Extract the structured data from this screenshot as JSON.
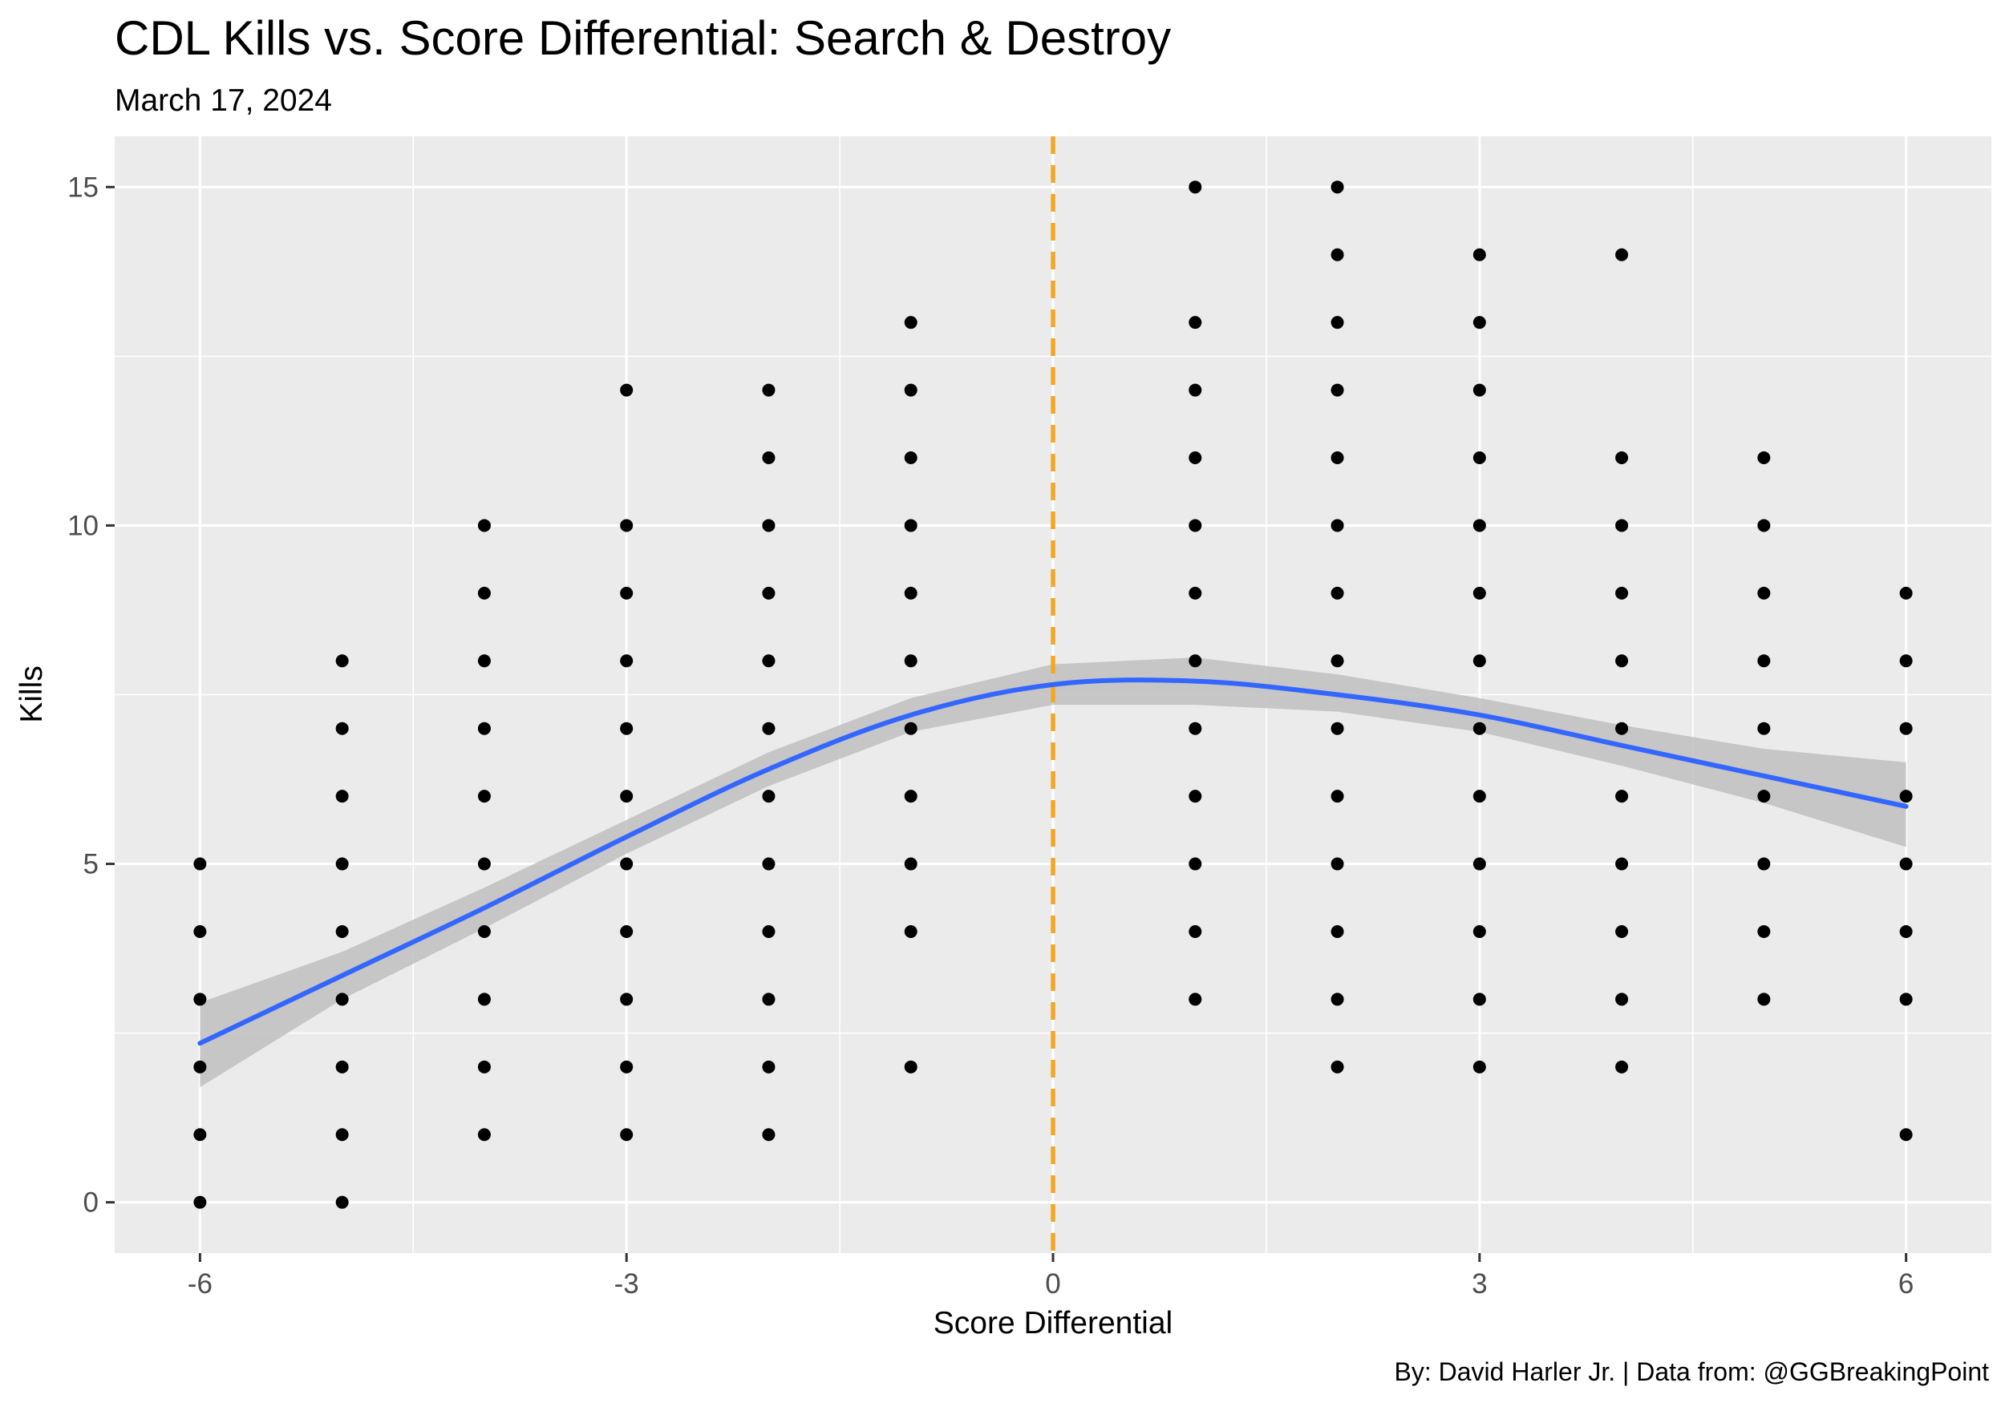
{
  "chart_data": {
    "type": "scatter",
    "title": "CDL Kills vs. Score Differential: Search & Destroy",
    "subtitle": "March 17, 2024",
    "xlabel": "Score Differential",
    "ylabel": "Kills",
    "caption": "By: David Harler Jr. | Data from: @GGBreakingPoint",
    "xlim": [
      -6.6,
      6.6
    ],
    "ylim": [
      -0.75,
      15.75
    ],
    "x_ticks": [
      -6,
      -3,
      0,
      3,
      6
    ],
    "x_tick_labels": [
      "-6",
      "-3",
      "0",
      "3",
      "6"
    ],
    "y_ticks": [
      0,
      5,
      10,
      15
    ],
    "y_tick_labels": [
      "0",
      "5",
      "10",
      "15"
    ],
    "grid": true,
    "legend": "none",
    "reference_line": {
      "x": 0,
      "style": "dashed",
      "color": "#f5a623"
    },
    "points": [
      {
        "x": -6,
        "kills": [
          0,
          1,
          2,
          3,
          4,
          5
        ]
      },
      {
        "x": -5,
        "kills": [
          0,
          1,
          2,
          3,
          4,
          5,
          6,
          7,
          8
        ]
      },
      {
        "x": -4,
        "kills": [
          1,
          2,
          3,
          4,
          5,
          6,
          7,
          8,
          9,
          10
        ]
      },
      {
        "x": -3,
        "kills": [
          1,
          2,
          3,
          4,
          5,
          6,
          7,
          8,
          9,
          10,
          12
        ]
      },
      {
        "x": -2,
        "kills": [
          1,
          2,
          3,
          4,
          5,
          6,
          7,
          8,
          9,
          10,
          11,
          12
        ]
      },
      {
        "x": -1,
        "kills": [
          2,
          4,
          5,
          6,
          7,
          8,
          9,
          10,
          11,
          12,
          13
        ]
      },
      {
        "x": 1,
        "kills": [
          3,
          4,
          5,
          6,
          7,
          8,
          9,
          10,
          11,
          12,
          13,
          15
        ]
      },
      {
        "x": 2,
        "kills": [
          2,
          3,
          4,
          5,
          6,
          7,
          8,
          9,
          10,
          11,
          12,
          13,
          14,
          15
        ]
      },
      {
        "x": 3,
        "kills": [
          2,
          3,
          4,
          5,
          6,
          7,
          8,
          9,
          10,
          11,
          12,
          13,
          14
        ]
      },
      {
        "x": 4,
        "kills": [
          2,
          3,
          4,
          5,
          6,
          7,
          8,
          9,
          10,
          11,
          14
        ]
      },
      {
        "x": 5,
        "kills": [
          3,
          4,
          5,
          6,
          7,
          8,
          9,
          10,
          11
        ]
      },
      {
        "x": 6,
        "kills": [
          1,
          3,
          4,
          5,
          6,
          7,
          8,
          9
        ]
      }
    ],
    "smooth": {
      "method": "loess",
      "color": "#3366ff",
      "ribbon_color": "#c0c0c0",
      "x": [
        -6,
        -5,
        -4,
        -3,
        -2,
        -1,
        0,
        1,
        2,
        3,
        4,
        5,
        6
      ],
      "y": [
        2.35,
        3.35,
        4.35,
        5.4,
        6.4,
        7.2,
        7.65,
        7.7,
        7.5,
        7.2,
        6.75,
        6.3,
        5.85
      ],
      "lower": [
        1.7,
        3.0,
        4.05,
        5.15,
        6.15,
        6.95,
        7.35,
        7.35,
        7.25,
        6.95,
        6.45,
        5.9,
        5.25
      ],
      "upper": [
        2.95,
        3.7,
        4.65,
        5.65,
        6.65,
        7.45,
        7.95,
        8.05,
        7.8,
        7.45,
        7.05,
        6.7,
        6.5
      ]
    },
    "colors": {
      "panel": "#ebebeb",
      "grid": "#ffffff",
      "point": "#000000",
      "tick_text": "#4d4d4d"
    }
  }
}
